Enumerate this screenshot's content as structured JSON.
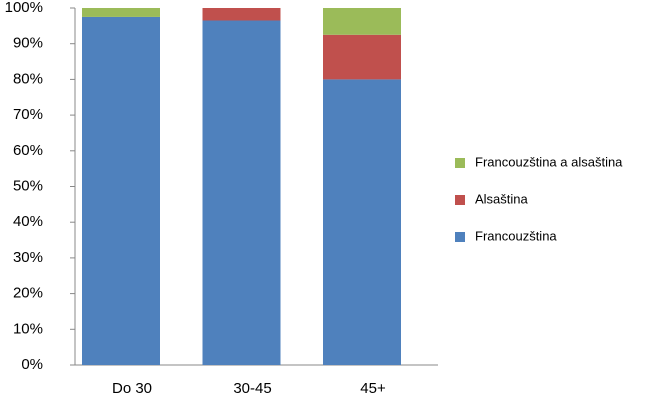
{
  "chart_data": {
    "type": "stacked_bar",
    "categories": [
      "Do 30",
      "30-45",
      "45+"
    ],
    "series": [
      {
        "name": "Francouzština",
        "color": "#4f81bd",
        "values": [
          97.5,
          96.5,
          80
        ]
      },
      {
        "name": "Alsaština",
        "color": "#c0504d",
        "values": [
          0,
          3.5,
          12.5
        ]
      },
      {
        "name": "Francouzština a alsaština",
        "color": "#9bbb59",
        "values": [
          2.5,
          0,
          7.5
        ]
      }
    ],
    "ylim": [
      0,
      100
    ],
    "yticks": [
      {
        "value": 0,
        "label": "0%"
      },
      {
        "value": 10,
        "label": "10%"
      },
      {
        "value": 20,
        "label": "20%"
      },
      {
        "value": 30,
        "label": "30%"
      },
      {
        "value": 40,
        "label": "40%"
      },
      {
        "value": 50,
        "label": "50%"
      },
      {
        "value": 60,
        "label": "60%"
      },
      {
        "value": 70,
        "label": "70%"
      },
      {
        "value": 80,
        "label": "80%"
      },
      {
        "value": 90,
        "label": "90%"
      },
      {
        "value": 100,
        "label": "100%"
      }
    ],
    "grid": false,
    "legend": "right"
  }
}
